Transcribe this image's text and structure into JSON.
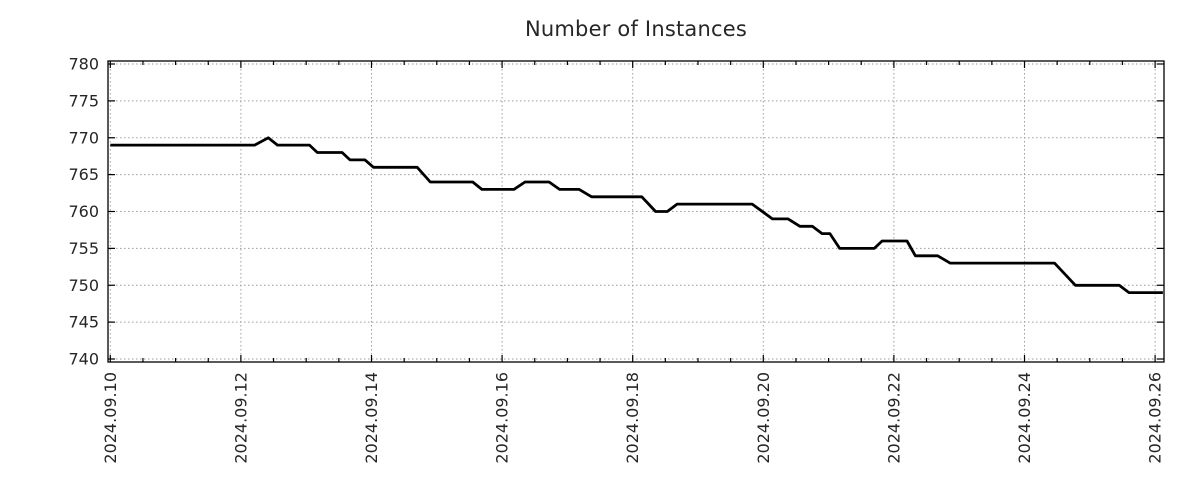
{
  "chart_data": {
    "type": "line",
    "title": "Number of Instances",
    "legend": "none",
    "grid": "dotted",
    "line_color": "#000000",
    "grid_color": "#9e9e9e",
    "axis_color": "#000000",
    "text_color": "#262626",
    "x_start_label": "2024.09.10",
    "x_tick_labels": [
      "2024.09.10",
      "2024.09.12",
      "2024.09.14",
      "2024.09.16",
      "2024.09.18",
      "2024.09.20",
      "2024.09.22",
      "2024.09.24",
      "2024.09.26"
    ],
    "x_tick_day_offsets": [
      0,
      2,
      4,
      6,
      8,
      10,
      12,
      14,
      16
    ],
    "x_minor_step_days": 0.5,
    "xlim_days": [
      0,
      16.12
    ],
    "ylim": [
      740,
      780
    ],
    "y_tick_labels": [
      "740",
      "745",
      "750",
      "755",
      "760",
      "765",
      "770",
      "775",
      "780"
    ],
    "y_tick_values": [
      740,
      745,
      750,
      755,
      760,
      765,
      770,
      775,
      780
    ],
    "series": [
      {
        "name": "instances",
        "points": [
          [
            0.0,
            769
          ],
          [
            2.21,
            769
          ],
          [
            2.42,
            770
          ],
          [
            2.56,
            769
          ],
          [
            3.05,
            769
          ],
          [
            3.17,
            768
          ],
          [
            3.55,
            768
          ],
          [
            3.67,
            767
          ],
          [
            3.9,
            767
          ],
          [
            4.03,
            766
          ],
          [
            4.7,
            766
          ],
          [
            4.9,
            764
          ],
          [
            5.55,
            764
          ],
          [
            5.69,
            763
          ],
          [
            6.18,
            763
          ],
          [
            6.35,
            764
          ],
          [
            6.72,
            764
          ],
          [
            6.88,
            763
          ],
          [
            7.18,
            763
          ],
          [
            7.37,
            762
          ],
          [
            8.14,
            762
          ],
          [
            8.35,
            760
          ],
          [
            8.53,
            760
          ],
          [
            8.68,
            761
          ],
          [
            9.83,
            761
          ],
          [
            10.14,
            759
          ],
          [
            10.38,
            759
          ],
          [
            10.56,
            758
          ],
          [
            10.75,
            758
          ],
          [
            10.9,
            757
          ],
          [
            11.02,
            757
          ],
          [
            11.17,
            755
          ],
          [
            11.7,
            755
          ],
          [
            11.82,
            756
          ],
          [
            12.2,
            756
          ],
          [
            12.33,
            754
          ],
          [
            12.67,
            754
          ],
          [
            12.86,
            753
          ],
          [
            14.46,
            753
          ],
          [
            14.78,
            750
          ],
          [
            15.45,
            750
          ],
          [
            15.6,
            749
          ],
          [
            16.12,
            749
          ]
        ]
      }
    ]
  }
}
